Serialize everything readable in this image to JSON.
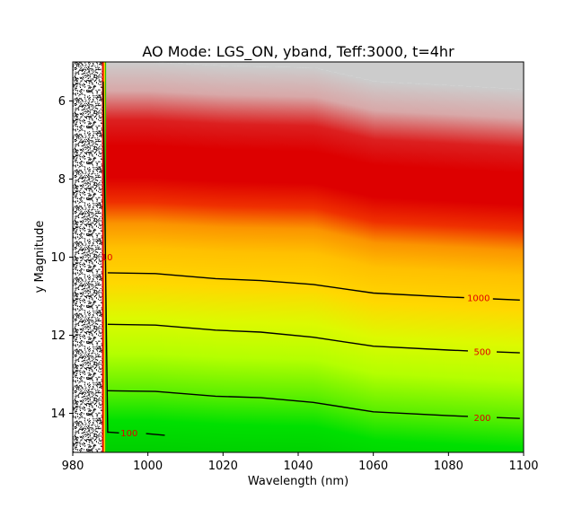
{
  "chart_data": {
    "type": "heatmap",
    "title": "AO Mode: LGS_ON, yband, Teff:3000, t=4hr",
    "xlabel": "Wavelength (nm)",
    "ylabel": "y Magnitude",
    "xlim": [
      980,
      1100
    ],
    "ylim": [
      15,
      5
    ],
    "x_ticks": [
      980,
      1000,
      1020,
      1040,
      1060,
      1080,
      1100
    ],
    "y_ticks": [
      6,
      8,
      10,
      12,
      14
    ],
    "y_inverted": true,
    "grid": false,
    "band_edge_wavelength": 988.5,
    "saturation_boundary": [
      {
        "x": 988.8,
        "y": 6.95
      },
      {
        "x": 1000,
        "y": 6.95
      },
      {
        "x": 1020,
        "y": 7.05
      },
      {
        "x": 1044,
        "y": 7.1
      },
      {
        "x": 1060,
        "y": 7.45
      },
      {
        "x": 1080,
        "y": 7.55
      },
      {
        "x": 1099,
        "y": 7.65
      }
    ],
    "colorscale": [
      {
        "offset": 0.0,
        "color": "#cccccc"
      },
      {
        "offset": 0.045,
        "color": "#d8a8a8"
      },
      {
        "offset": 0.09,
        "color": "#dc2020"
      },
      {
        "offset": 0.13,
        "color": "#dd0000"
      },
      {
        "offset": 0.22,
        "color": "#dd0000"
      },
      {
        "offset": 0.29,
        "color": "#ef3000"
      },
      {
        "offset": 0.35,
        "color": "#fb9400"
      },
      {
        "offset": 0.42,
        "color": "#ffc000"
      },
      {
        "offset": 0.52,
        "color": "#ffd800"
      },
      {
        "offset": 0.62,
        "color": "#dcfa00"
      },
      {
        "offset": 0.72,
        "color": "#b4ff00"
      },
      {
        "offset": 0.82,
        "color": "#60f000"
      },
      {
        "offset": 0.91,
        "color": "#00e000"
      },
      {
        "offset": 1.0,
        "color": "#00cf00"
      }
    ],
    "contours": [
      {
        "label": "1000",
        "label_at": {
          "x": 1088,
          "y": 11.05
        },
        "points": [
          {
            "x": 989.3,
            "y": 10.4
          },
          {
            "x": 1002,
            "y": 10.42
          },
          {
            "x": 1018,
            "y": 10.55
          },
          {
            "x": 1030,
            "y": 10.6
          },
          {
            "x": 1044,
            "y": 10.7
          },
          {
            "x": 1060,
            "y": 10.92
          },
          {
            "x": 1080,
            "y": 11.02
          },
          {
            "x": 1099,
            "y": 11.1
          }
        ]
      },
      {
        "label": "500",
        "label_at": {
          "x": 1089,
          "y": 12.42
        },
        "points": [
          {
            "x": 989.3,
            "y": 11.72
          },
          {
            "x": 1002,
            "y": 11.74
          },
          {
            "x": 1018,
            "y": 11.87
          },
          {
            "x": 1030,
            "y": 11.92
          },
          {
            "x": 1044,
            "y": 12.05
          },
          {
            "x": 1060,
            "y": 12.28
          },
          {
            "x": 1080,
            "y": 12.38
          },
          {
            "x": 1099,
            "y": 12.45
          }
        ]
      },
      {
        "label": "200",
        "label_at": {
          "x": 1089,
          "y": 14.12
        },
        "points": [
          {
            "x": 989.3,
            "y": 13.42
          },
          {
            "x": 1002,
            "y": 13.44
          },
          {
            "x": 1018,
            "y": 13.56
          },
          {
            "x": 1030,
            "y": 13.6
          },
          {
            "x": 1044,
            "y": 13.72
          },
          {
            "x": 1060,
            "y": 13.96
          },
          {
            "x": 1080,
            "y": 14.06
          },
          {
            "x": 1099,
            "y": 14.13
          }
        ]
      },
      {
        "label": "100",
        "label_at": {
          "x": 995,
          "y": 14.5
        },
        "points": [
          {
            "x": 989.3,
            "y": 14.48
          },
          {
            "x": 992.3,
            "y": 14.5
          }
        ],
        "points_right": [
          {
            "x": 999.5,
            "y": 14.52
          },
          {
            "x": 1004.5,
            "y": 14.56
          }
        ]
      }
    ],
    "edge_contour_label": "10"
  }
}
